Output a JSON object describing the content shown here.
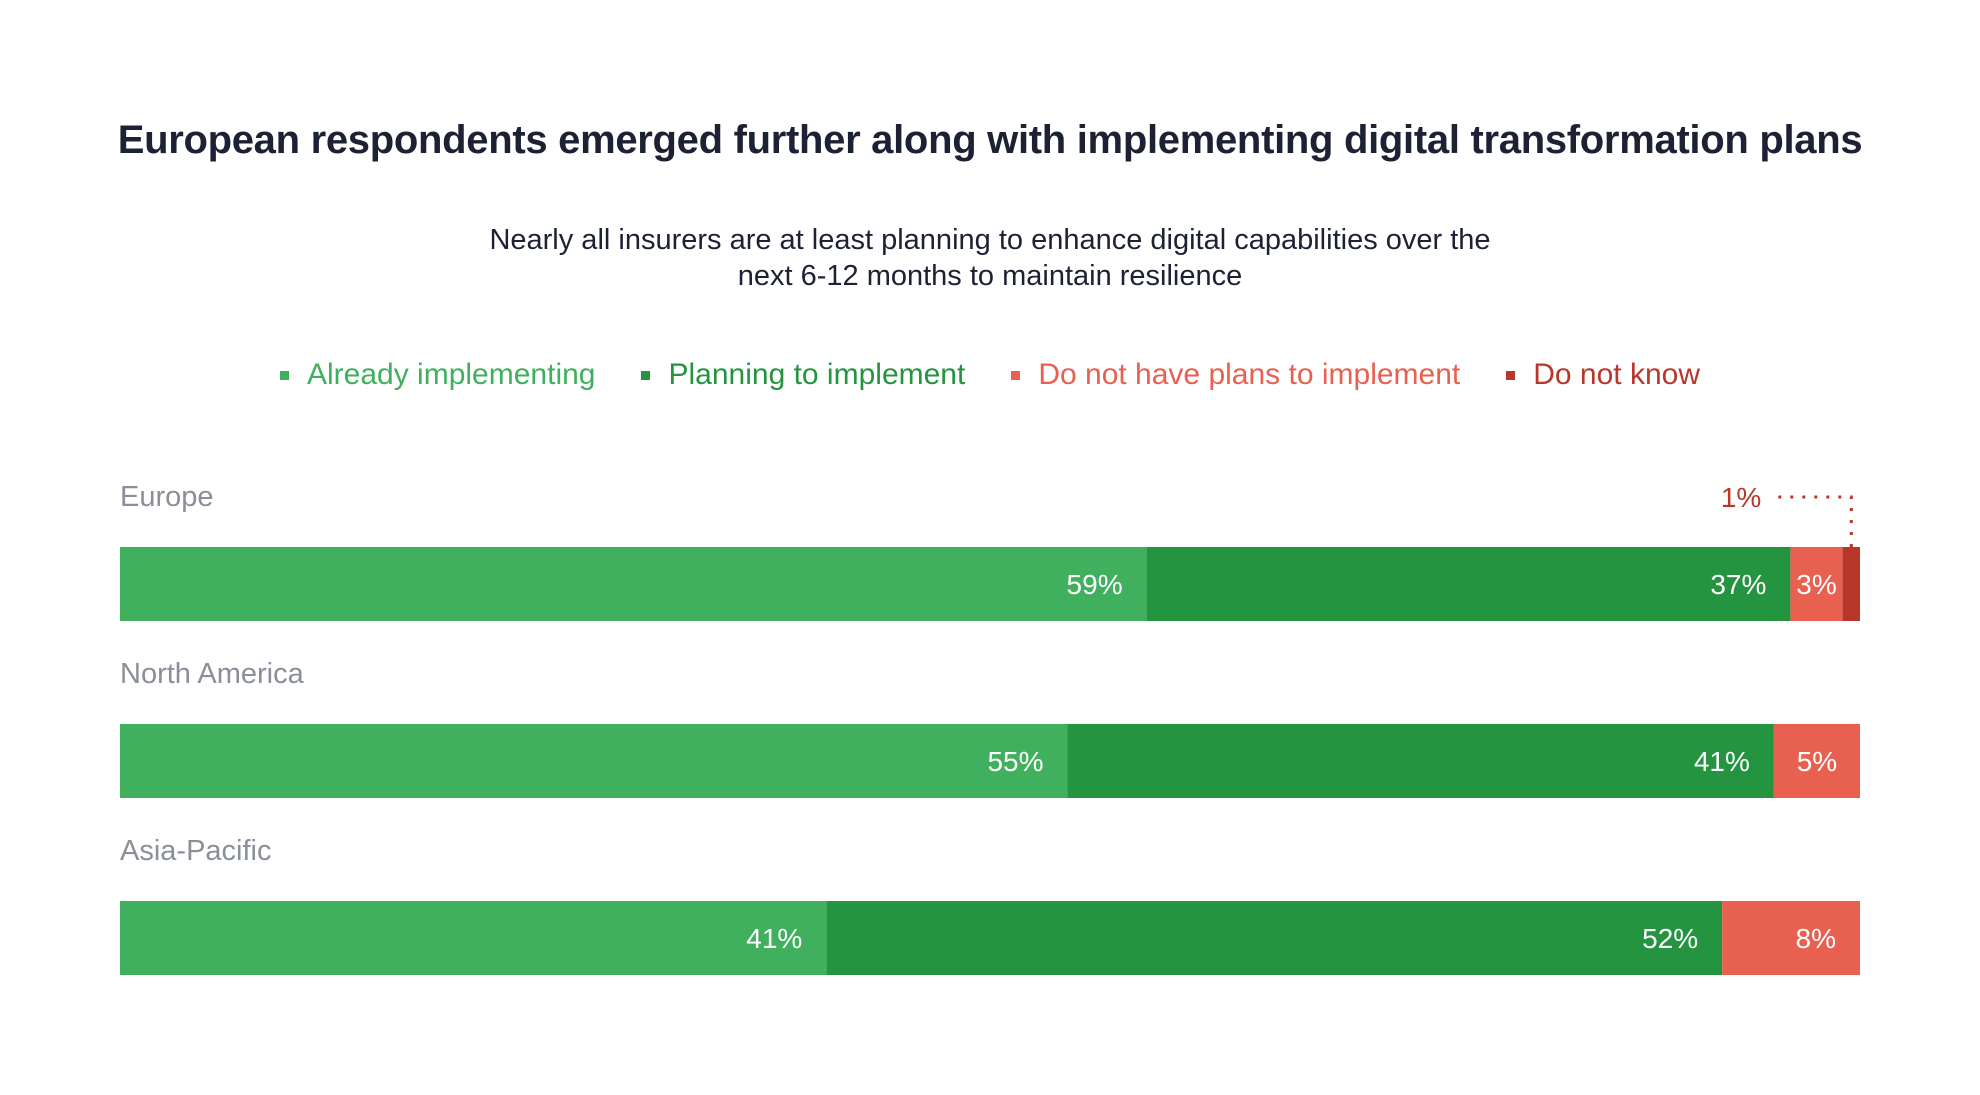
{
  "chart_data": {
    "type": "bar",
    "orientation": "horizontal",
    "stacked": true,
    "title": "European respondents emerged further along with implementing digital transformation plans",
    "subtitle_line1": "Nearly all insurers are at least planning to enhance digital capabilities over the",
    "subtitle_line2": "next 6-12 months to maintain resilience",
    "categories": [
      "Europe",
      "North America",
      "Asia-Pacific"
    ],
    "series": [
      {
        "name": "Already implementing",
        "color": "#41b05e",
        "values": [
          59,
          55,
          41
        ],
        "labels": [
          "59%",
          "55%",
          "41%"
        ]
      },
      {
        "name": "Planning to implement",
        "color": "#259441",
        "values": [
          37,
          41,
          52
        ],
        "labels": [
          "37%",
          "41%",
          "52%"
        ]
      },
      {
        "name": "Do not have plans to implement",
        "color": "#e8604f",
        "values": [
          3,
          5,
          8
        ],
        "labels": [
          "3%",
          "5%",
          "8%"
        ]
      },
      {
        "name": "Do not know",
        "color": "#b8372b",
        "values": [
          1,
          0,
          0
        ],
        "labels": [
          "1%",
          "",
          ""
        ]
      }
    ],
    "legend_position": "top",
    "grid": false,
    "xlim": [
      0,
      100
    ]
  }
}
